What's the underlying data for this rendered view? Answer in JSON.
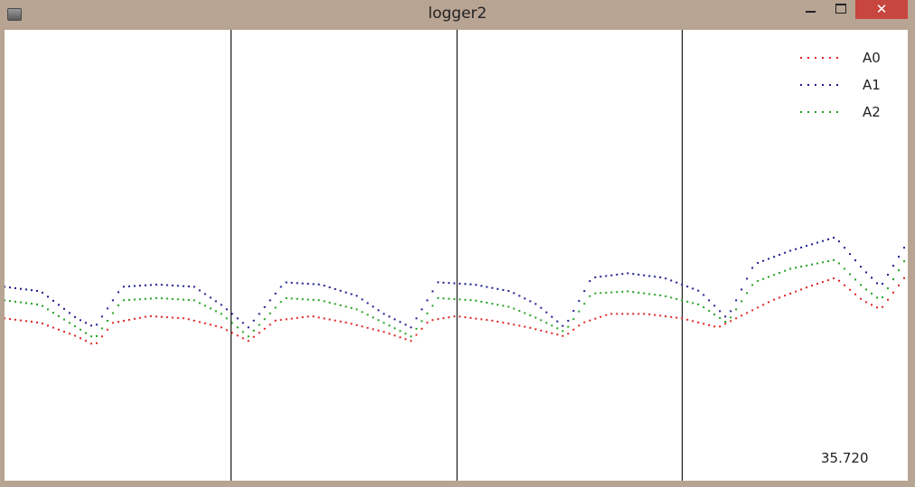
{
  "window": {
    "title": "logger2",
    "close_glyph": "✕"
  },
  "legend": {
    "items": [
      {
        "label": "A0",
        "color": "#e02020"
      },
      {
        "label": "A1",
        "color": "#1a1a8c"
      },
      {
        "label": "A2",
        "color": "#20a020"
      }
    ]
  },
  "readout": "35.720",
  "chart_data": {
    "type": "scatter",
    "grid": "vertical lines only",
    "legend_placement": "top-right",
    "vertical_divisions": 4,
    "ylim": [
      0,
      100
    ],
    "series": [
      {
        "name": "A0",
        "color": "#e02020",
        "samples": [
          {
            "x": 0,
            "y": 36
          },
          {
            "x": 4,
            "y": 35
          },
          {
            "x": 8,
            "y": 32
          },
          {
            "x": 10,
            "y": 30
          },
          {
            "x": 12,
            "y": 35
          },
          {
            "x": 16,
            "y": 36.5
          },
          {
            "x": 20,
            "y": 36
          },
          {
            "x": 24,
            "y": 34
          },
          {
            "x": 27,
            "y": 31
          },
          {
            "x": 30,
            "y": 35.5
          },
          {
            "x": 34,
            "y": 36.5
          },
          {
            "x": 38,
            "y": 35
          },
          {
            "x": 42,
            "y": 33
          },
          {
            "x": 45,
            "y": 31
          },
          {
            "x": 47,
            "y": 35.5
          },
          {
            "x": 50,
            "y": 36.5
          },
          {
            "x": 54,
            "y": 35.5
          },
          {
            "x": 58,
            "y": 34
          },
          {
            "x": 62,
            "y": 32
          },
          {
            "x": 64,
            "y": 35
          },
          {
            "x": 67,
            "y": 37
          },
          {
            "x": 71,
            "y": 37
          },
          {
            "x": 75,
            "y": 36
          },
          {
            "x": 79,
            "y": 34
          },
          {
            "x": 81,
            "y": 36
          },
          {
            "x": 85,
            "y": 40
          },
          {
            "x": 89,
            "y": 43
          },
          {
            "x": 92,
            "y": 45
          },
          {
            "x": 95,
            "y": 40
          },
          {
            "x": 97,
            "y": 38
          },
          {
            "x": 100,
            "y": 46
          }
        ]
      },
      {
        "name": "A1",
        "color": "#1a1a8c",
        "samples": [
          {
            "x": 0,
            "y": 43
          },
          {
            "x": 4,
            "y": 42
          },
          {
            "x": 8,
            "y": 36
          },
          {
            "x": 10,
            "y": 34
          },
          {
            "x": 13,
            "y": 43
          },
          {
            "x": 17,
            "y": 43.5
          },
          {
            "x": 21,
            "y": 43
          },
          {
            "x": 24,
            "y": 39
          },
          {
            "x": 27,
            "y": 34
          },
          {
            "x": 31,
            "y": 44
          },
          {
            "x": 35,
            "y": 43.5
          },
          {
            "x": 39,
            "y": 41
          },
          {
            "x": 42,
            "y": 37
          },
          {
            "x": 45,
            "y": 34
          },
          {
            "x": 48,
            "y": 44
          },
          {
            "x": 52,
            "y": 43.5
          },
          {
            "x": 56,
            "y": 42
          },
          {
            "x": 59,
            "y": 39
          },
          {
            "x": 62,
            "y": 34
          },
          {
            "x": 65,
            "y": 45
          },
          {
            "x": 69,
            "y": 46
          },
          {
            "x": 73,
            "y": 45
          },
          {
            "x": 77,
            "y": 42
          },
          {
            "x": 80,
            "y": 36
          },
          {
            "x": 83,
            "y": 48
          },
          {
            "x": 87,
            "y": 51
          },
          {
            "x": 92,
            "y": 54
          },
          {
            "x": 95,
            "y": 47
          },
          {
            "x": 97,
            "y": 43
          },
          {
            "x": 100,
            "y": 53
          }
        ]
      },
      {
        "name": "A2",
        "color": "#20a020",
        "samples": [
          {
            "x": 0,
            "y": 40
          },
          {
            "x": 4,
            "y": 39
          },
          {
            "x": 8,
            "y": 34
          },
          {
            "x": 10,
            "y": 31.5
          },
          {
            "x": 13,
            "y": 40
          },
          {
            "x": 17,
            "y": 40.5
          },
          {
            "x": 21,
            "y": 40
          },
          {
            "x": 24,
            "y": 37
          },
          {
            "x": 27,
            "y": 32
          },
          {
            "x": 31,
            "y": 40.5
          },
          {
            "x": 35,
            "y": 40
          },
          {
            "x": 39,
            "y": 38
          },
          {
            "x": 42,
            "y": 35
          },
          {
            "x": 45,
            "y": 32
          },
          {
            "x": 48,
            "y": 40.5
          },
          {
            "x": 52,
            "y": 40
          },
          {
            "x": 56,
            "y": 38.5
          },
          {
            "x": 59,
            "y": 36
          },
          {
            "x": 62,
            "y": 33
          },
          {
            "x": 65,
            "y": 41.5
          },
          {
            "x": 69,
            "y": 42
          },
          {
            "x": 73,
            "y": 41
          },
          {
            "x": 77,
            "y": 39
          },
          {
            "x": 80,
            "y": 35
          },
          {
            "x": 83,
            "y": 44
          },
          {
            "x": 87,
            "y": 47
          },
          {
            "x": 92,
            "y": 49
          },
          {
            "x": 95,
            "y": 43
          },
          {
            "x": 97,
            "y": 40
          },
          {
            "x": 100,
            "y": 50
          }
        ]
      }
    ]
  }
}
